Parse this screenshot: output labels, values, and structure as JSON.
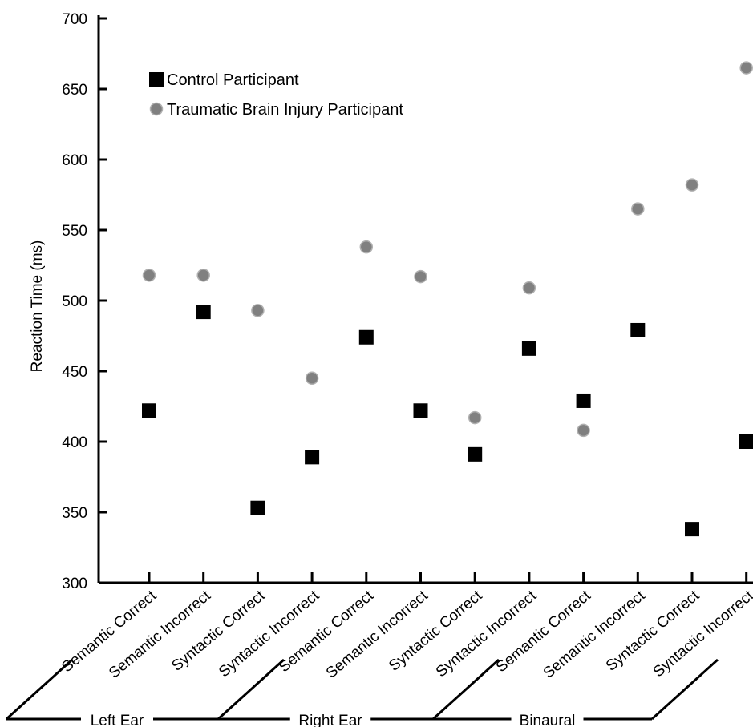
{
  "chart_data": {
    "type": "scatter",
    "categories": [
      "Semantic Correct",
      "Semantic Incorrect",
      "Syntactic Correct",
      "Syntactic Incorrect",
      "Semantic Correct",
      "Semantic Incorrect",
      "Syntactic Correct",
      "Syntactic Incorrect",
      "Semantic Correct",
      "Semantic Incorrect",
      "Syntactic Correct",
      "Syntactic Incorrect"
    ],
    "groups": [
      {
        "label": "Left Ear",
        "start": 0,
        "end": 3
      },
      {
        "label": "Right Ear",
        "start": 4,
        "end": 7
      },
      {
        "label": "Binaural",
        "start": 8,
        "end": 11
      }
    ],
    "series": [
      {
        "name": "Control Participant",
        "marker": "square",
        "color": "#000000",
        "values": [
          422,
          492,
          353,
          389,
          474,
          422,
          391,
          466,
          429,
          479,
          338,
          400
        ]
      },
      {
        "name": "Traumatic Brain Injury Participant",
        "marker": "circle",
        "color": "#808080",
        "values": [
          518,
          518,
          493,
          445,
          538,
          517,
          417,
          509,
          408,
          565,
          582,
          665
        ]
      }
    ],
    "ylabel": "Reaction Time (ms)",
    "xlabel": "",
    "ylim": [
      300,
      700
    ],
    "yticks": [
      300,
      350,
      400,
      450,
      500,
      550,
      600,
      650,
      700
    ],
    "legend_position": "top-left",
    "grid": false
  }
}
